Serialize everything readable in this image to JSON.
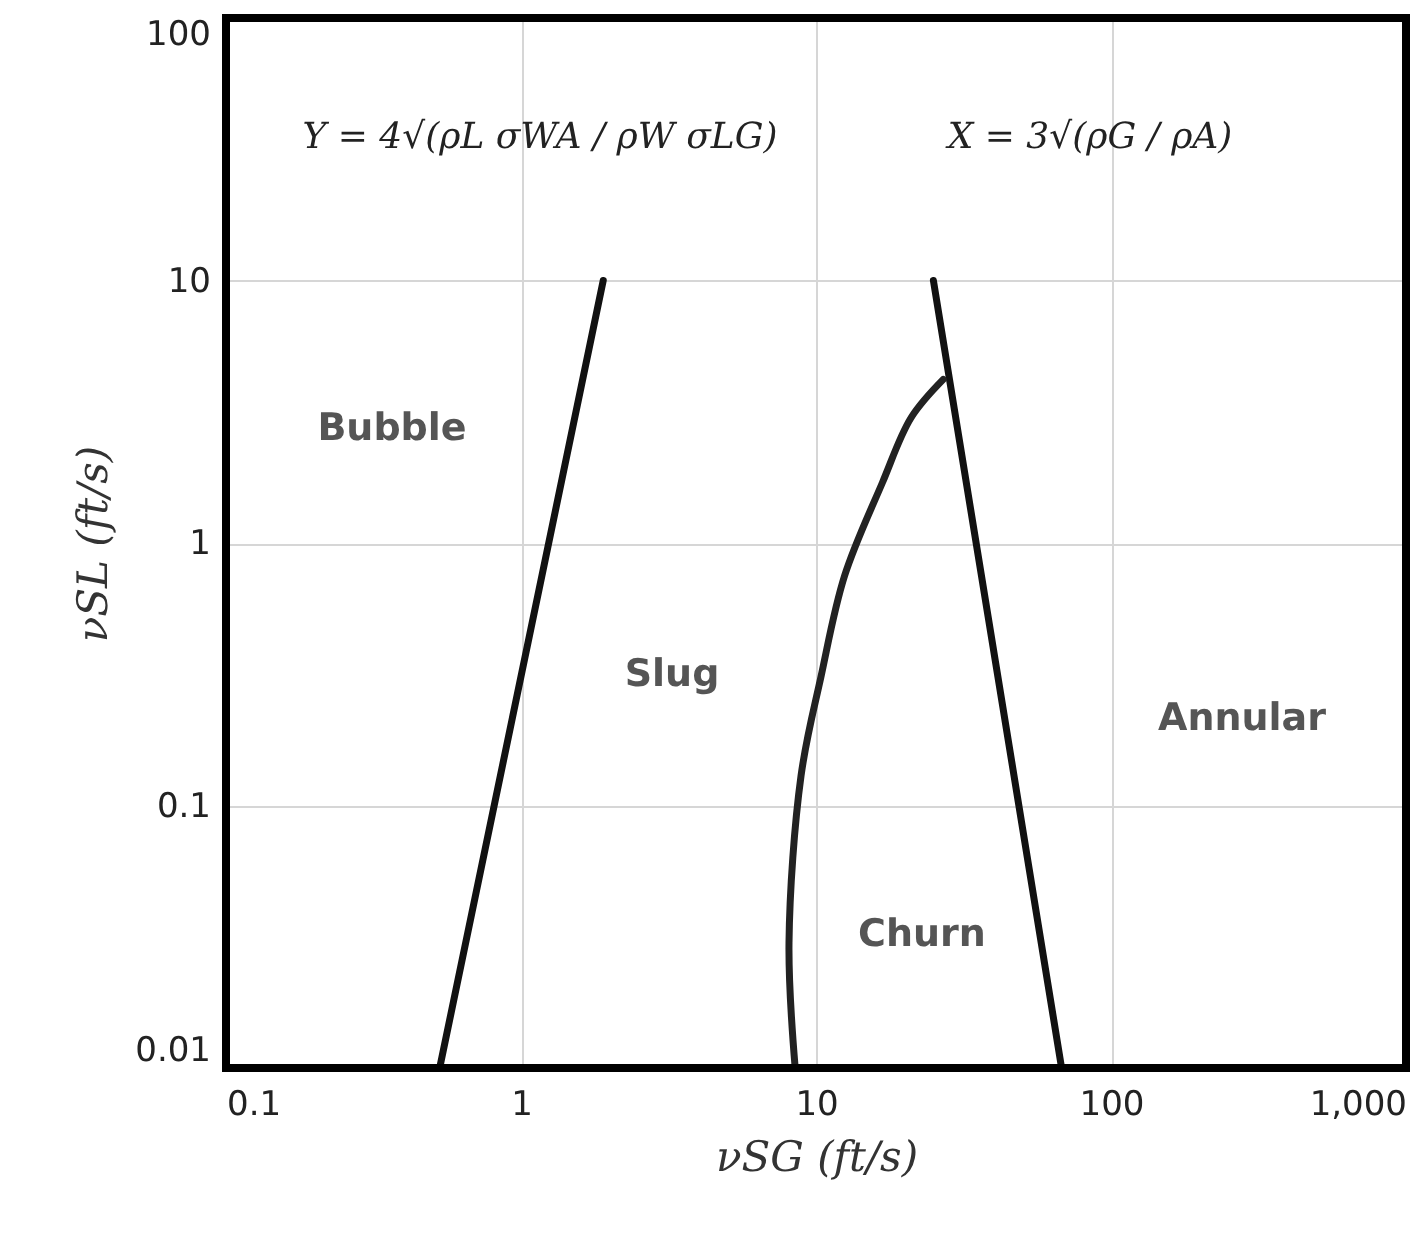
{
  "chart_data": {
    "type": "line",
    "xlabel": "νSG (ft/s)",
    "ylabel": "νSL (ft/s)",
    "log": "xy",
    "grid": true,
    "marker": "none",
    "line_style": "solid",
    "xlim": [
      0.1,
      1000
    ],
    "ylim": [
      0.01,
      100
    ],
    "xticks": [
      0.1,
      1,
      10,
      100,
      {
        "value": 1000,
        "label": "1,000"
      }
    ],
    "yticks": [
      0.01,
      0.1,
      1,
      10,
      100
    ],
    "series": [
      {
        "color": "#111111",
        "x": [
          0.53,
          1.9
        ],
        "values": [
          0.01,
          10
        ]
      },
      {
        "color": "#111111",
        "x": [
          68,
          25
        ],
        "values": [
          0.01,
          10
        ]
      },
      {
        "color": "#222222",
        "x": [
          8.5,
          8.1,
          8.9,
          10.4,
          12.5,
          16.8,
          21,
          27
        ],
        "values": [
          0.01,
          0.03,
          0.13,
          0.31,
          0.75,
          1.7,
          3,
          4.2
        ]
      }
    ],
    "annotations": [
      "Y = 4√(ρL σWA / ρW σLG)",
      "X = 3√(ρG / ρA)",
      "Bubble",
      "Slug",
      "Churn",
      "Annular"
    ]
  }
}
